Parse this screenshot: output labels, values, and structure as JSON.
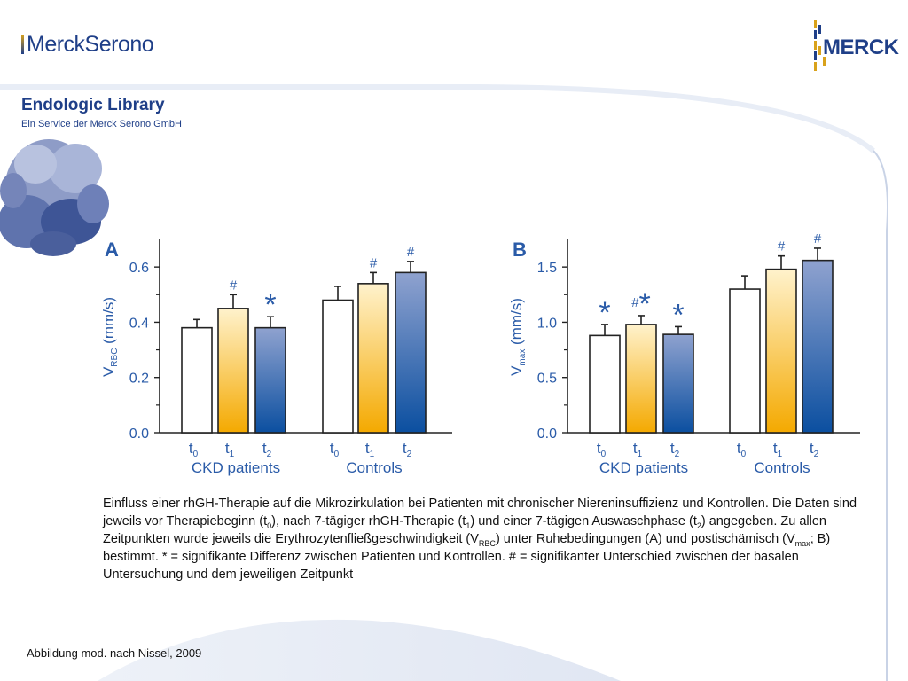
{
  "header": {
    "logo_left": "MerckSerono",
    "logo_right": "MERCK",
    "library_title": "Endologic Library",
    "library_subtitle": "Ein Service der Merck Serono GmbH"
  },
  "colors": {
    "brand": "#1f3f88",
    "axis_text": "#2a5ba8",
    "gold": "#f4a900",
    "gold_light": "#fff2cc",
    "blue_dark": "#0b4fa0",
    "blue_light": "#8fa2cf",
    "empty": "#ffffff"
  },
  "chart_data": [
    {
      "panel": "A",
      "type": "bar",
      "ylabel_main": "V",
      "ylabel_sub": "RBC",
      "ylabel_unit": " (mm/s)",
      "ylim": [
        0,
        0.7
      ],
      "ticks": [
        0.0,
        0.2,
        0.4,
        0.6
      ],
      "tick_labels": [
        "0.0",
        "0.2",
        "0.4",
        "0.6"
      ],
      "groups": [
        "CKD patients",
        "Controls"
      ],
      "categories": [
        {
          "main": "t",
          "sub": "0"
        },
        {
          "main": "t",
          "sub": "1"
        },
        {
          "main": "t",
          "sub": "2"
        }
      ],
      "series": [
        {
          "name": "CKD patients",
          "values": [
            0.38,
            0.45,
            0.38
          ],
          "errors": [
            0.03,
            0.05,
            0.04
          ],
          "marks": [
            "",
            "#",
            "*"
          ]
        },
        {
          "name": "Controls",
          "values": [
            0.48,
            0.54,
            0.58
          ],
          "errors": [
            0.05,
            0.04,
            0.04
          ],
          "marks": [
            "",
            "#",
            "#"
          ]
        }
      ]
    },
    {
      "panel": "B",
      "type": "bar",
      "ylabel_main": "V",
      "ylabel_sub": "max",
      "ylabel_unit": " (mm/s)",
      "ylim": [
        0,
        1.75
      ],
      "ticks": [
        0.0,
        0.5,
        1.0,
        1.5
      ],
      "tick_labels": [
        "0.0",
        "0.5",
        "1.0",
        "1.5"
      ],
      "groups": [
        "CKD patients",
        "Controls"
      ],
      "categories": [
        {
          "main": "t",
          "sub": "0"
        },
        {
          "main": "t",
          "sub": "1"
        },
        {
          "main": "t",
          "sub": "2"
        }
      ],
      "series": [
        {
          "name": "CKD patients",
          "values": [
            0.88,
            0.98,
            0.89
          ],
          "errors": [
            0.1,
            0.08,
            0.07
          ],
          "marks": [
            "*",
            "#*",
            "*"
          ]
        },
        {
          "name": "Controls",
          "values": [
            1.3,
            1.48,
            1.56
          ],
          "errors": [
            0.12,
            0.12,
            0.11
          ],
          "marks": [
            "",
            "#",
            "#"
          ]
        }
      ]
    }
  ],
  "caption": {
    "p1": "Einfluss einer rhGH-Therapie auf die Mikrozirkulation bei Patienten mit chronischer Niereninsuffizienz und Kontrollen. Die Daten sind jeweils vor Therapiebeginn (t",
    "s1": "0",
    "p2": "), nach 7-tägiger rhGH-Therapie (t",
    "s2": "1",
    "p3": ") und einer 7-tägigen Auswaschphase (t",
    "s3": "2",
    "p4": ") angegeben. Zu allen Zeitpunkten wurde jeweils die Erythrozytenfließgeschwindigkeit (V",
    "s4": "RBC",
    "p5": ") unter Ruhebedingungen (A) und postischämisch (V",
    "s5": "max",
    "p6": "; B) bestimmt. * = signifikante Differenz zwischen Patienten und Kontrollen. # = signifikanter Unterschied zwischen der basalen Untersuchung und dem jeweiligen Zeitpunkt"
  },
  "source": "Abbildung mod. nach Nissel, 2009"
}
